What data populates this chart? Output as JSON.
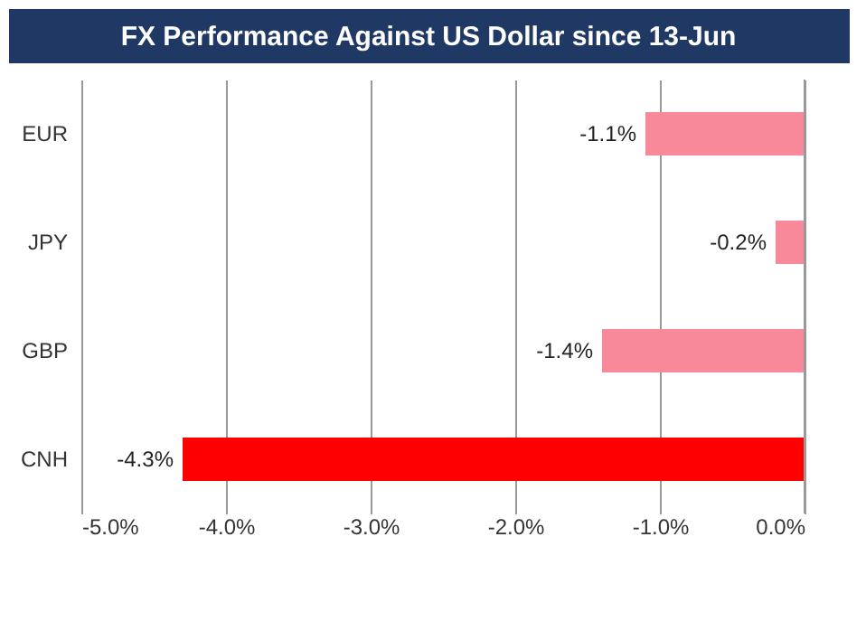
{
  "chart_data": {
    "type": "bar",
    "orientation": "horizontal",
    "title": "FX Performance Against US Dollar since 13-Jun",
    "categories": [
      "EUR",
      "JPY",
      "GBP",
      "CNH"
    ],
    "values": [
      -1.1,
      -0.2,
      -1.4,
      -4.3
    ],
    "colors": [
      "#f7899a",
      "#f7899a",
      "#f7899a",
      "#ff0000"
    ],
    "value_labels": [
      "-1.1%",
      "-0.2%",
      "-1.4%",
      "-4.3%"
    ],
    "xlim": [
      -5.0,
      0.0
    ],
    "xticks": [
      {
        "value": -5.0,
        "label": "-5.0%"
      },
      {
        "value": -4.0,
        "label": "-4.0%"
      },
      {
        "value": -3.0,
        "label": "-3.0%"
      },
      {
        "value": -2.0,
        "label": "-2.0%"
      },
      {
        "value": -1.0,
        "label": "-1.0%"
      },
      {
        "value": 0.0,
        "label": "0.0%"
      }
    ],
    "grid": "x"
  }
}
